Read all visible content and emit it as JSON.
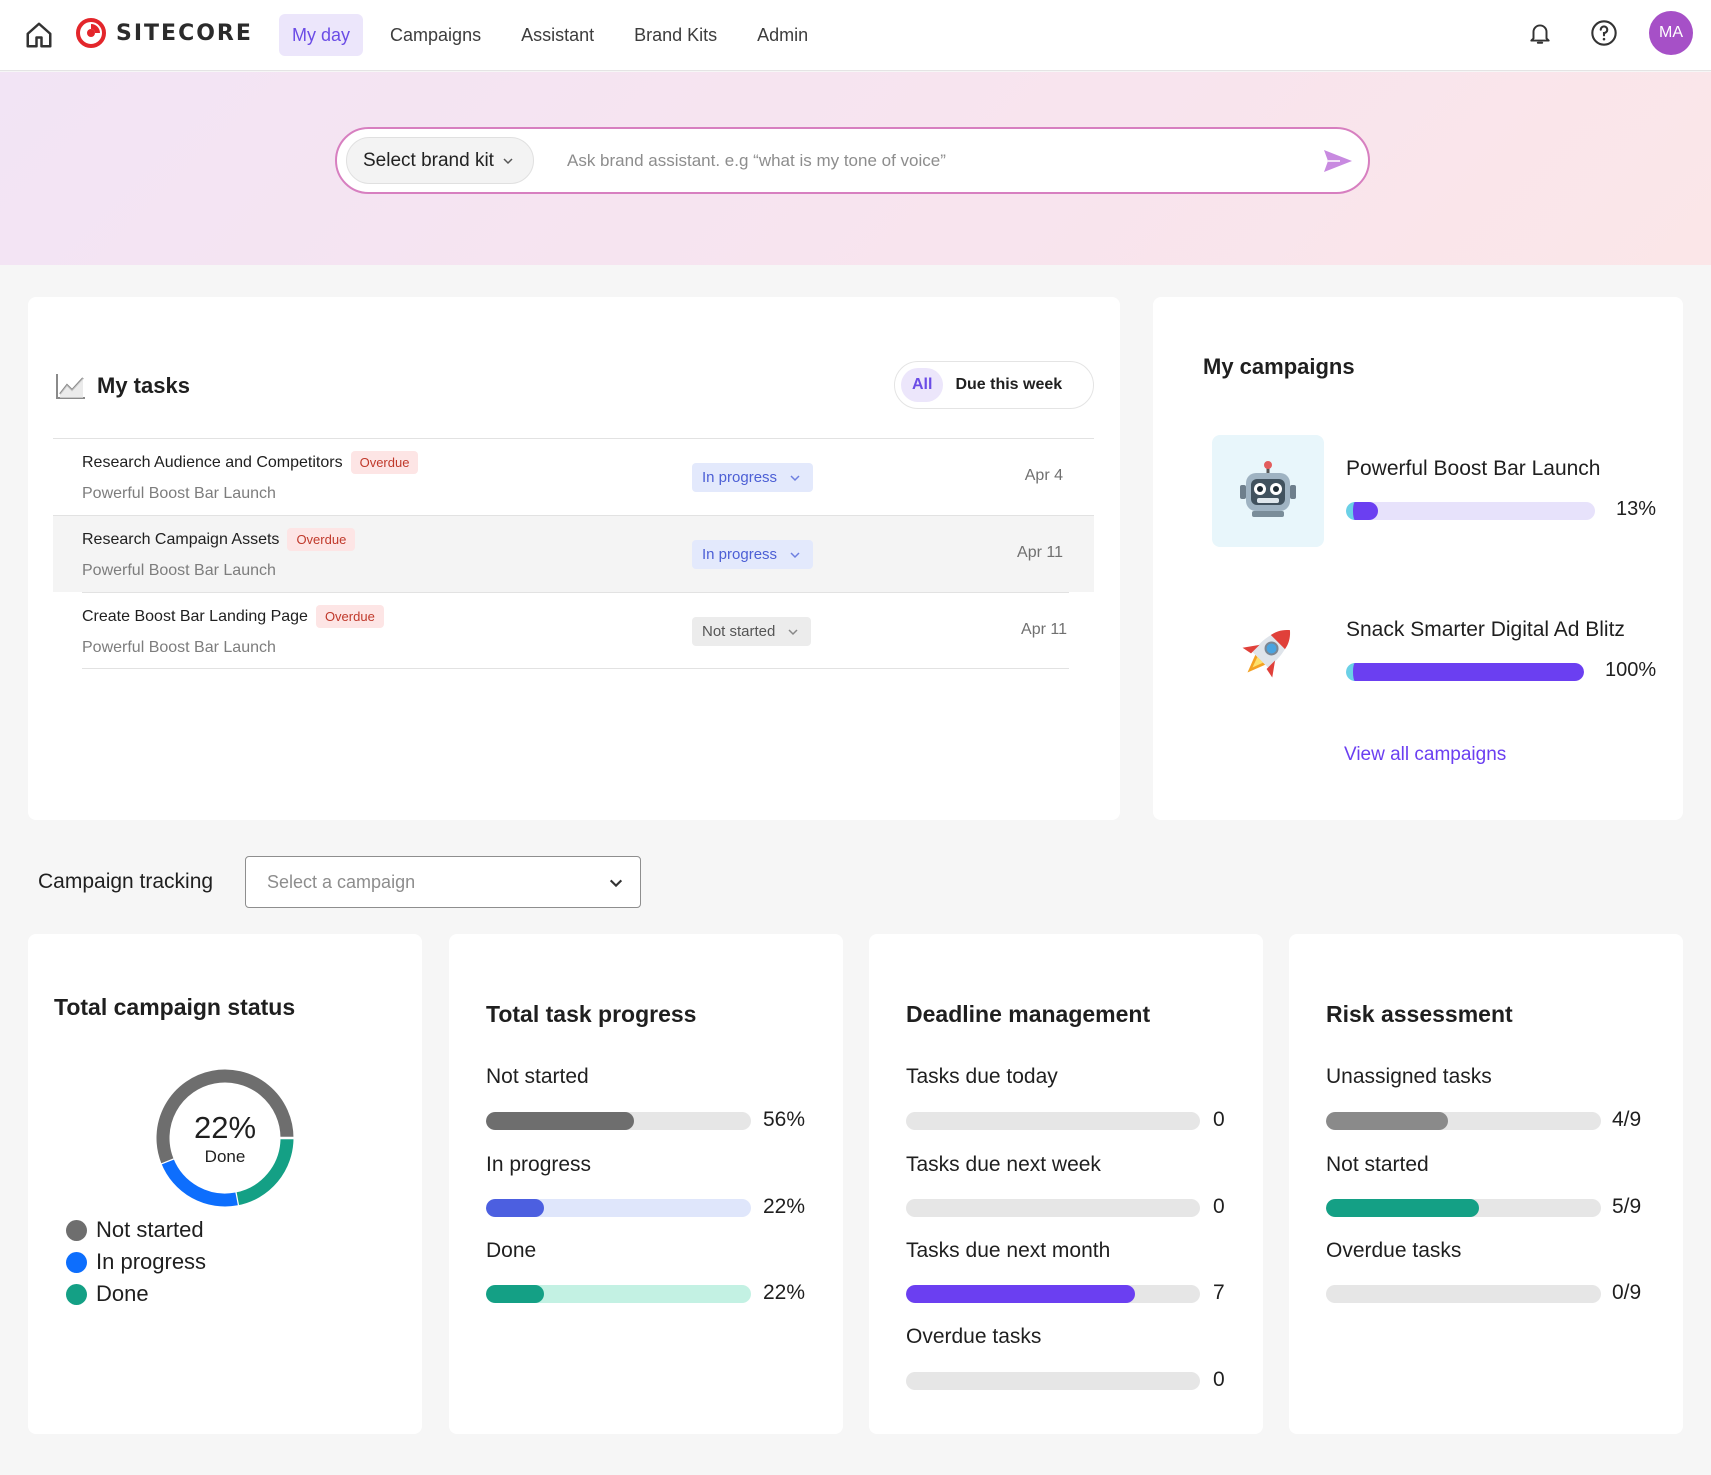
{
  "topbar": {
    "logo": "SITECORE",
    "nav": [
      "My day",
      "Campaigns",
      "Assistant",
      "Brand Kits",
      "Admin"
    ],
    "active_nav": "My day",
    "avatar_initials": "MA"
  },
  "hero": {
    "brand_select": "Select brand kit",
    "search_placeholder": "Ask brand assistant. e.g “what is my tone of voice”"
  },
  "tasks": {
    "title": "My tasks",
    "filter_all": "All",
    "filter_week": "Due this week",
    "rows": [
      {
        "title": "Research Audience and Competitors",
        "badge": "Overdue",
        "campaign": "Powerful Boost Bar Launch",
        "status": "In progress",
        "date": "Apr 4"
      },
      {
        "title": "Research Campaign Assets",
        "badge": "Overdue",
        "campaign": "Powerful Boost Bar Launch",
        "status": "In progress",
        "date": "Apr 11"
      },
      {
        "title": "Create Boost Bar Landing Page",
        "badge": "Overdue",
        "campaign": "Powerful Boost Bar Launch",
        "status": "Not started",
        "date": "Apr 11"
      }
    ]
  },
  "campaigns": {
    "title": "My campaigns",
    "items": [
      {
        "name": "Powerful Boost Bar Launch",
        "progress": 13,
        "pct_label": "13%",
        "icon": "robot-icon"
      },
      {
        "name": "Snack Smarter Digital Ad Blitz",
        "progress": 100,
        "pct_label": "100%",
        "icon": "rocket-icon"
      }
    ],
    "view_all": "View all campaigns"
  },
  "tracking": {
    "label": "Campaign tracking",
    "select_placeholder": "Select a campaign"
  },
  "status_card": {
    "title": "Total campaign status",
    "center_pct": "22%",
    "center_label": "Done",
    "segments": [
      {
        "label": "Not started",
        "value": 56,
        "color": "#6e6e6e"
      },
      {
        "label": "In progress",
        "value": 22,
        "color": "#0d6efd"
      },
      {
        "label": "Done",
        "value": 22,
        "color": "#14a085"
      }
    ]
  },
  "task_progress": {
    "title": "Total task progress",
    "rows": [
      {
        "label": "Not started",
        "value": 56,
        "value_label": "56%",
        "fill": "#6e6e6e",
        "track": "#e6e6e6"
      },
      {
        "label": "In progress",
        "value": 22,
        "value_label": "22%",
        "fill": "#4c5fe0",
        "track": "#dfe6fb"
      },
      {
        "label": "Done",
        "value": 22,
        "value_label": "22%",
        "fill": "#14a085",
        "track": "#c3f1e3"
      }
    ]
  },
  "deadline": {
    "title": "Deadline management",
    "rows": [
      {
        "label": "Tasks due today",
        "value": 0,
        "value_label": "0",
        "fill_pct": 0
      },
      {
        "label": "Tasks due next week",
        "value": 0,
        "value_label": "0",
        "fill_pct": 0
      },
      {
        "label": "Tasks due next month",
        "value": 7,
        "value_label": "7",
        "fill_pct": 78
      },
      {
        "label": "Overdue tasks",
        "value": 0,
        "value_label": "0",
        "fill_pct": 0
      }
    ],
    "fill_color": "#6b3ff1"
  },
  "risk": {
    "title": "Risk assessment",
    "rows": [
      {
        "label": "Unassigned tasks",
        "value": 4,
        "total": 9,
        "value_label": "4/9",
        "fill": "#8a8a8a"
      },
      {
        "label": "Not started",
        "value": 5,
        "total": 9,
        "value_label": "5/9",
        "fill": "#14a085"
      },
      {
        "label": "Overdue tasks",
        "value": 0,
        "total": 9,
        "value_label": "0/9",
        "fill": "#8a8a8a"
      }
    ]
  }
}
